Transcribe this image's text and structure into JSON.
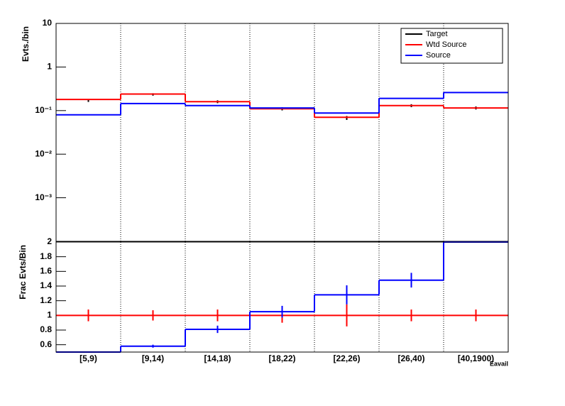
{
  "chart_data": [
    {
      "type": "step",
      "y_label": "Evts./bin",
      "log_y": true,
      "grid_x": true,
      "legend": "top-right",
      "categories": [
        "[5,9)",
        "[9,14)",
        "[14,18)",
        "[18,22)",
        "[22,26)",
        "[26,40)",
        "[40,1900)"
      ],
      "ylim": [
        0.0001,
        10
      ],
      "yticks": [
        {
          "value": 0.001,
          "label": "10⁻³"
        },
        {
          "value": 0.01,
          "label": "10⁻²"
        },
        {
          "value": 0.1,
          "label": "10⁻¹"
        },
        1,
        10
      ],
      "series": [
        {
          "name": "Target",
          "color": "#000000",
          "style": "points",
          "values": [
            0.17,
            0.235,
            0.16,
            0.11,
            0.068,
            0.13,
            0.115
          ],
          "errors": [
            0.012,
            0.015,
            0.012,
            0.009,
            0.007,
            0.01,
            0.009
          ]
        },
        {
          "name": "Wtd Source",
          "color": "#ff0000",
          "style": "step",
          "values": [
            0.18,
            0.24,
            0.16,
            0.11,
            0.07,
            0.13,
            0.115
          ]
        },
        {
          "name": "Source",
          "color": "#0000ff",
          "style": "step",
          "values": [
            0.08,
            0.145,
            0.13,
            0.115,
            0.088,
            0.19,
            0.26
          ]
        }
      ]
    },
    {
      "type": "step",
      "y_label": "Frac Evts/Bin",
      "x_label": "Eavail",
      "grid_x": true,
      "categories": [
        "[5,9)",
        "[9,14)",
        "[14,18)",
        "[18,22)",
        "[22,26)",
        "[26,40)",
        "[40,1900)"
      ],
      "ylim": [
        0.5,
        2
      ],
      "yticks": [
        0.6,
        0.8,
        1,
        1.2,
        1.4,
        1.6,
        1.8,
        2
      ],
      "series": [
        {
          "color": "#ff0000",
          "style": "step",
          "values": [
            1,
            1,
            1,
            1,
            1,
            1,
            1
          ],
          "errors": [
            0.08,
            0.07,
            0.08,
            0.1,
            0.15,
            0.08,
            0.08
          ]
        },
        {
          "color": "#0000ff",
          "style": "step",
          "values": [
            0.5,
            0.58,
            0.81,
            1.05,
            1.28,
            1.48,
            2
          ],
          "errors": [
            0,
            0.02,
            0.05,
            0.08,
            0.13,
            0.1,
            0
          ]
        }
      ]
    }
  ]
}
